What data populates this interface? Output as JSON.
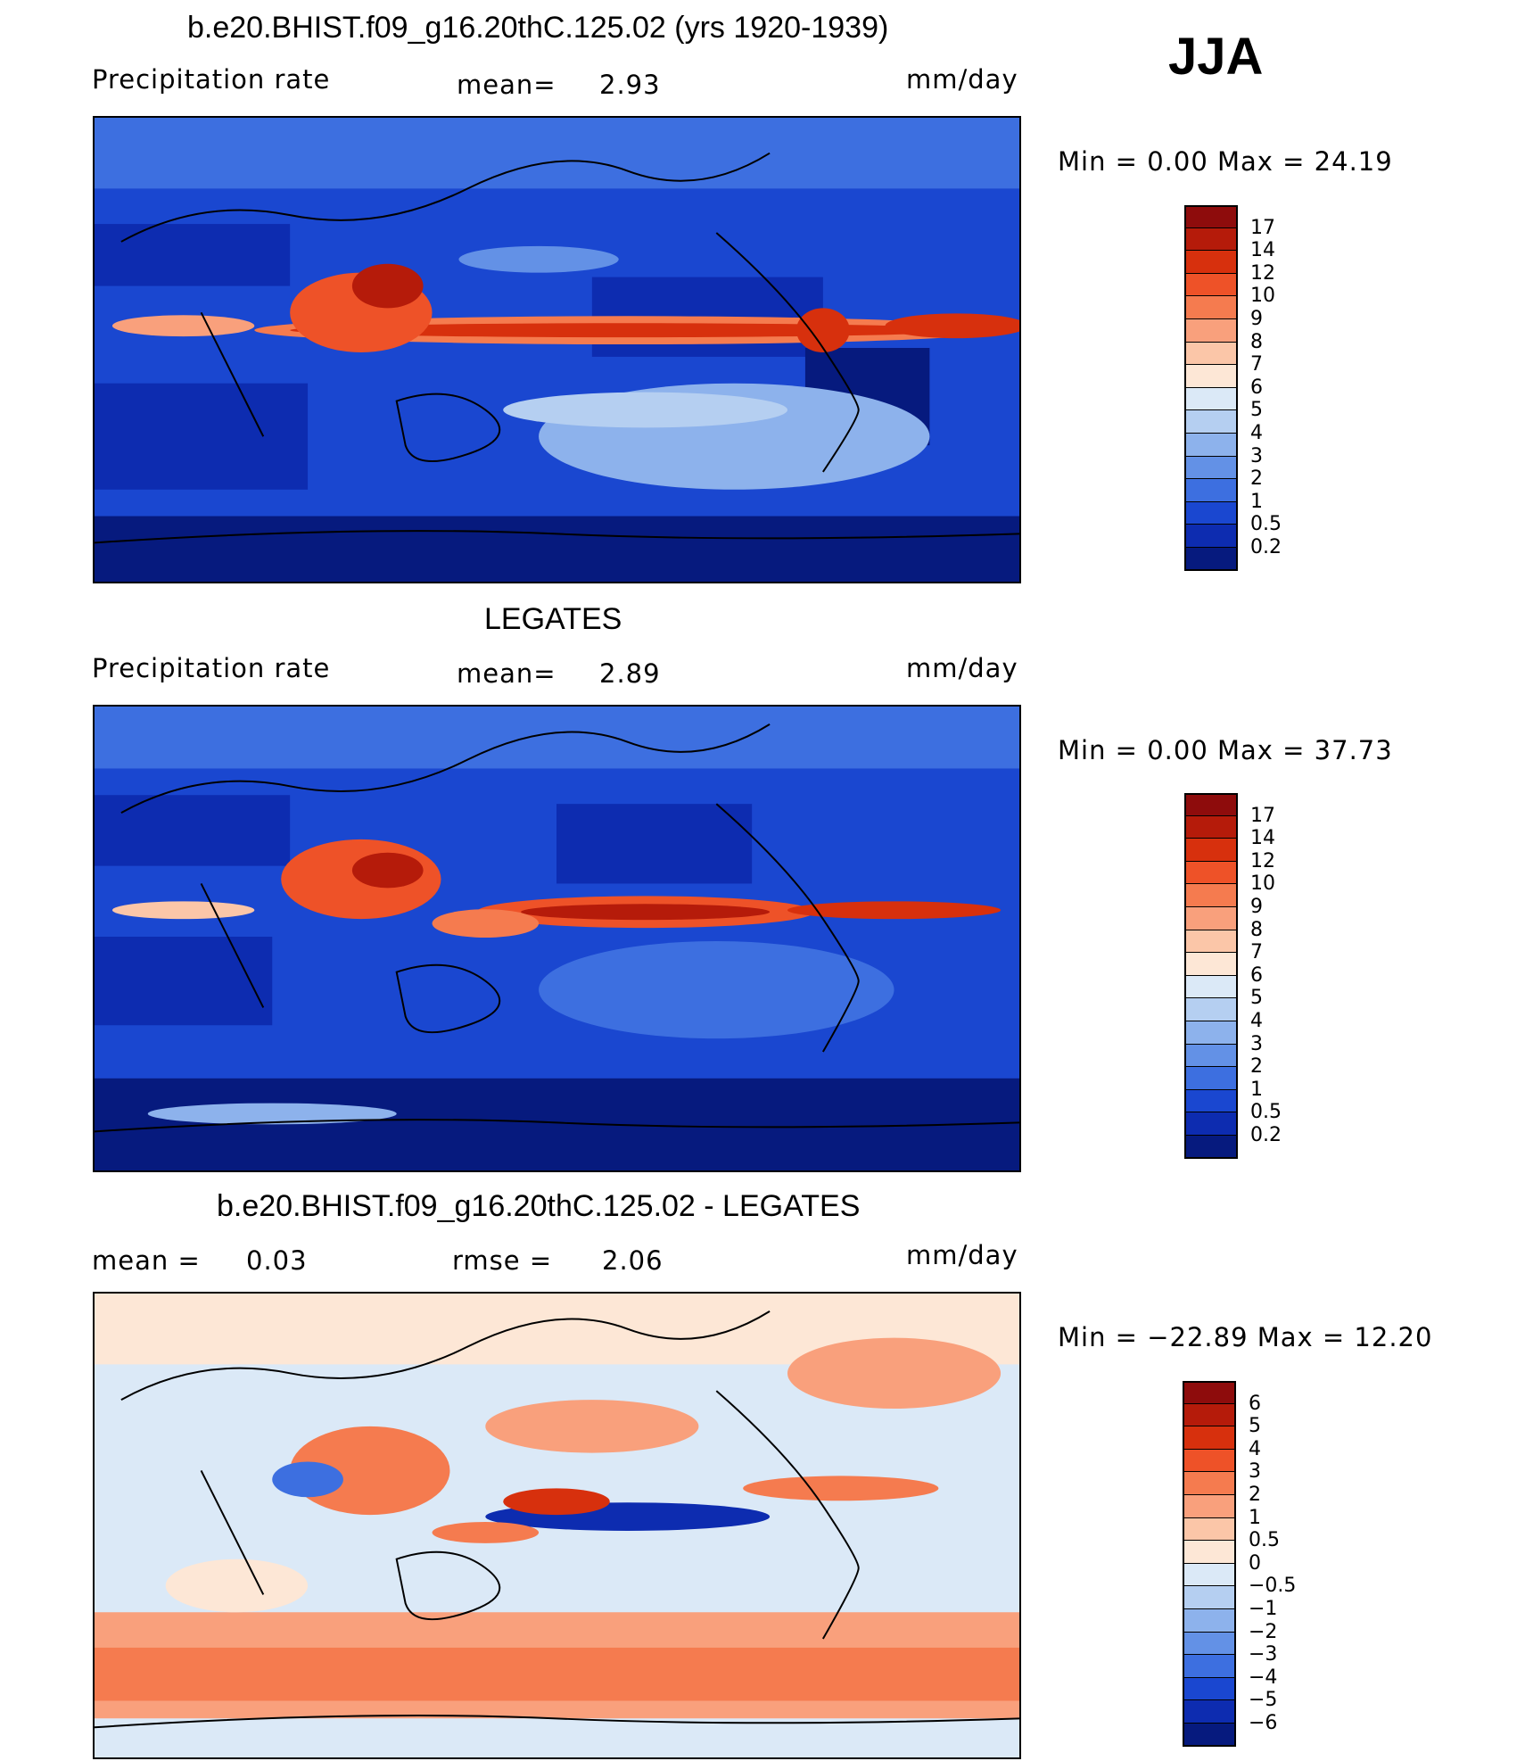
{
  "season": "JJA",
  "panels": [
    {
      "title": "b.e20.BHIST.f09_g16.20thC.125.02 (yrs 1920-1939)",
      "left_label": "Precipitation  rate",
      "mid_label": "mean=",
      "mid_value": "2.93",
      "right_label": "",
      "right_value": "",
      "units": "mm/day",
      "min_max": "Min  =     0.00  Max  =    24.19",
      "colorbar": {
        "labels": [
          "17",
          "14",
          "12",
          "10",
          "9",
          "8",
          "7",
          "6",
          "5",
          "4",
          "3",
          "2",
          "1",
          "0.5",
          "0.2"
        ],
        "colors": [
          "#8e0c0c",
          "#b51b0a",
          "#d7300d",
          "#ee5228",
          "#f57b4f",
          "#f9a07c",
          "#fbc6a8",
          "#fde7d6",
          "#dbe9f7",
          "#b5cff1",
          "#8db2ec",
          "#6391e6",
          "#3d6fe0",
          "#1a47d0",
          "#0d2cb0",
          "#061a7e"
        ]
      }
    },
    {
      "title": "LEGATES",
      "left_label": "Precipitation  rate",
      "mid_label": "mean=",
      "mid_value": "2.89",
      "right_label": "",
      "right_value": "",
      "units": "mm/day",
      "min_max": "Min  =     0.00  Max  =    37.73",
      "colorbar": {
        "labels": [
          "17",
          "14",
          "12",
          "10",
          "9",
          "8",
          "7",
          "6",
          "5",
          "4",
          "3",
          "2",
          "1",
          "0.5",
          "0.2"
        ],
        "colors": [
          "#8e0c0c",
          "#b51b0a",
          "#d7300d",
          "#ee5228",
          "#f57b4f",
          "#f9a07c",
          "#fbc6a8",
          "#fde7d6",
          "#dbe9f7",
          "#b5cff1",
          "#8db2ec",
          "#6391e6",
          "#3d6fe0",
          "#1a47d0",
          "#0d2cb0",
          "#061a7e"
        ]
      }
    },
    {
      "title": "b.e20.BHIST.f09_g16.20thC.125.02 - LEGATES",
      "left_label": "mean  =",
      "mid_label": "rmse  =",
      "mid_value": "2.06",
      "left_value": "0.03",
      "units": "mm/day",
      "min_max": "Min  = −22.89  Max  =    12.20",
      "colorbar": {
        "labels": [
          "6",
          "5",
          "4",
          "3",
          "2",
          "1",
          "0.5",
          "0",
          "−0.5",
          "−1",
          "−2",
          "−3",
          "−4",
          "−5",
          "−6"
        ],
        "colors": [
          "#8e0c0c",
          "#b51b0a",
          "#d7300d",
          "#ee5228",
          "#f57b4f",
          "#f9a07c",
          "#fbc6a8",
          "#fde7d6",
          "#dbe9f7",
          "#b5cff1",
          "#8db2ec",
          "#6391e6",
          "#3d6fe0",
          "#1a47d0",
          "#0d2cb0",
          "#061a7e"
        ]
      }
    }
  ]
}
